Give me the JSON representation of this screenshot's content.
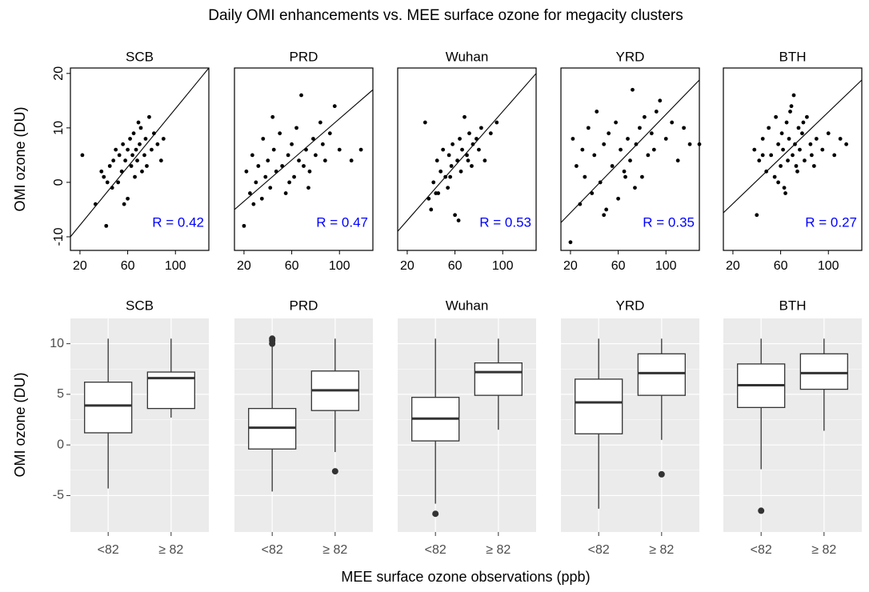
{
  "figure": {
    "title": "Daily OMI enhancements vs. MEE surface ozone for megacity clusters",
    "x_label": "MEE surface ozone observations (ppb)",
    "y_label": "OMI ozone (DU)"
  },
  "chart_data": [
    {
      "type": "scatter",
      "title": "SCB",
      "color": "#000000",
      "xlim": [
        12,
        128
      ],
      "ylim": [
        -12.5,
        21
      ],
      "xticks": [
        20,
        60,
        100
      ],
      "yticks": [
        -10,
        0,
        10,
        20
      ],
      "x": [
        22,
        33,
        38,
        40,
        42,
        45,
        47,
        48,
        50,
        52,
        53,
        55,
        56,
        58,
        60,
        60,
        62,
        63,
        64,
        65,
        66,
        67,
        68,
        70,
        71,
        72,
        74,
        75,
        76,
        78,
        80,
        82,
        85,
        88,
        90,
        43,
        57,
        69
      ],
      "y": [
        5,
        -4,
        2,
        1,
        -8,
        3,
        -1,
        4,
        6,
        0,
        5,
        2,
        7,
        4,
        -3,
        6,
        8,
        3,
        5,
        9,
        1,
        6,
        4,
        7,
        10,
        2,
        5,
        8,
        3,
        12,
        6,
        9,
        7,
        4,
        8,
        0,
        -4,
        11
      ],
      "fit_line": {
        "x": [
          12,
          128
        ],
        "y": [
          -10,
          21
        ]
      },
      "annotation": "R = 0.42",
      "annotation_color": "#0000ff"
    },
    {
      "type": "scatter",
      "title": "PRD",
      "color": "#000000",
      "xlim": [
        12,
        128
      ],
      "ylim": [
        -12.5,
        21
      ],
      "xticks": [
        20,
        60,
        100
      ],
      "x": [
        20,
        22,
        25,
        27,
        30,
        32,
        35,
        36,
        38,
        40,
        42,
        45,
        47,
        50,
        52,
        55,
        57,
        60,
        62,
        64,
        66,
        68,
        70,
        72,
        75,
        78,
        80,
        84,
        88,
        92,
        96,
        100,
        110,
        118,
        28,
        44,
        58,
        74,
        86
      ],
      "y": [
        -8,
        2,
        -2,
        5,
        0,
        3,
        -3,
        8,
        1,
        4,
        -1,
        6,
        2,
        9,
        3,
        -2,
        5,
        7,
        1,
        10,
        4,
        16,
        3,
        6,
        2,
        8,
        5,
        11,
        4,
        9,
        14,
        6,
        4,
        6,
        -4,
        12,
        0,
        -1,
        7
      ],
      "fit_line": {
        "x": [
          12,
          128
        ],
        "y": [
          -5,
          17
        ]
      },
      "annotation": "R = 0.47",
      "annotation_color": "#0000ff"
    },
    {
      "type": "scatter",
      "title": "Wuhan",
      "color": "#000000",
      "xlim": [
        12,
        128
      ],
      "ylim": [
        -12.5,
        21
      ],
      "xticks": [
        20,
        60,
        100
      ],
      "x": [
        35,
        38,
        40,
        42,
        45,
        46,
        48,
        50,
        52,
        54,
        55,
        57,
        58,
        60,
        62,
        64,
        65,
        66,
        68,
        70,
        72,
        74,
        75,
        78,
        80,
        82,
        85,
        90,
        95,
        44,
        56,
        63,
        71
      ],
      "y": [
        11,
        -3,
        -5,
        0,
        4,
        -2,
        2,
        6,
        1,
        -1,
        5,
        3,
        7,
        -6,
        4,
        8,
        2,
        6,
        12,
        5,
        9,
        3,
        7,
        8,
        6,
        10,
        4,
        9,
        11,
        -2,
        1,
        -7,
        4
      ],
      "fit_line": {
        "x": [
          12,
          128
        ],
        "y": [
          -9,
          20
        ]
      },
      "annotation": "R = 0.53",
      "annotation_color": "#0000ff"
    },
    {
      "type": "scatter",
      "title": "YRD",
      "color": "#000000",
      "xlim": [
        12,
        128
      ],
      "ylim": [
        -12.5,
        21
      ],
      "xticks": [
        20,
        60,
        100
      ],
      "x": [
        20,
        22,
        25,
        28,
        30,
        32,
        35,
        38,
        40,
        42,
        45,
        48,
        50,
        52,
        55,
        58,
        60,
        62,
        65,
        68,
        70,
        72,
        75,
        78,
        80,
        82,
        85,
        88,
        90,
        95,
        100,
        105,
        110,
        115,
        120,
        128,
        48,
        66,
        74,
        92
      ],
      "y": [
        -11,
        8,
        3,
        -4,
        6,
        1,
        10,
        -2,
        5,
        13,
        0,
        7,
        -5,
        9,
        3,
        11,
        -3,
        6,
        2,
        8,
        4,
        17,
        7,
        10,
        1,
        12,
        5,
        9,
        6,
        15,
        8,
        11,
        4,
        10,
        7,
        7,
        -6,
        1,
        -1,
        13
      ],
      "fit_line": {
        "x": [
          12,
          128
        ],
        "y": [
          -7.4,
          18.8
        ]
      },
      "annotation": "R = 0.35",
      "annotation_color": "#0000ff"
    },
    {
      "type": "scatter",
      "title": "BTH",
      "color": "#000000",
      "xlim": [
        12,
        128
      ],
      "ylim": [
        -12.5,
        21
      ],
      "xticks": [
        20,
        60,
        100
      ],
      "x": [
        38,
        40,
        42,
        45,
        48,
        50,
        52,
        55,
        56,
        58,
        60,
        61,
        62,
        64,
        65,
        66,
        67,
        68,
        70,
        71,
        72,
        74,
        75,
        76,
        78,
        80,
        82,
        85,
        88,
        90,
        95,
        100,
        105,
        110,
        115,
        45,
        58,
        63,
        69,
        73,
        79,
        86
      ],
      "y": [
        6,
        -6,
        4,
        8,
        2,
        10,
        5,
        1,
        12,
        7,
        3,
        9,
        6,
        -2,
        11,
        4,
        8,
        13,
        5,
        16,
        7,
        2,
        10,
        6,
        9,
        4,
        12,
        7,
        3,
        8,
        6,
        9,
        5,
        8,
        7,
        5,
        0,
        -1,
        14,
        3,
        11,
        5
      ],
      "fit_line": {
        "x": [
          12,
          128
        ],
        "y": [
          -5.6,
          18.8
        ]
      },
      "annotation": "R = 0.27",
      "annotation_color": "#0000ff"
    },
    {
      "type": "box",
      "title": "SCB",
      "categories": [
        "<82",
        "≥ 82"
      ],
      "ylim": [
        -8.6,
        12.5
      ],
      "yticks": [
        -5,
        0,
        5,
        10
      ],
      "grid": true,
      "background": "#ebebeb",
      "color": "#333333",
      "boxes": [
        {
          "low": -4.3,
          "q1": 1.2,
          "median": 3.9,
          "q3": 6.2,
          "high": 10.5,
          "outliers": []
        },
        {
          "low": 2.7,
          "q1": 3.6,
          "median": 6.6,
          "q3": 7.2,
          "high": 10.5,
          "outliers": []
        }
      ]
    },
    {
      "type": "box",
      "title": "PRD",
      "categories": [
        "<82",
        "≥ 82"
      ],
      "ylim": [
        -8.6,
        12.5
      ],
      "grid": true,
      "background": "#ebebeb",
      "color": "#333333",
      "boxes": [
        {
          "low": -4.6,
          "q1": -0.4,
          "median": 1.7,
          "q3": 3.6,
          "high": 9.7,
          "outliers": [
            10.0,
            10.3,
            10.5
          ]
        },
        {
          "low": -0.7,
          "q1": 3.4,
          "median": 5.4,
          "q3": 7.3,
          "high": 10.5,
          "outliers": [
            -2.6
          ]
        }
      ]
    },
    {
      "type": "box",
      "title": "Wuhan",
      "categories": [
        "<82",
        "≥ 82"
      ],
      "ylim": [
        -8.6,
        12.5
      ],
      "grid": true,
      "background": "#ebebeb",
      "color": "#333333",
      "boxes": [
        {
          "low": -5.8,
          "q1": 0.4,
          "median": 2.6,
          "q3": 4.7,
          "high": 10.5,
          "outliers": [
            -6.8
          ]
        },
        {
          "low": 1.5,
          "q1": 4.9,
          "median": 7.2,
          "q3": 8.1,
          "high": 10.5,
          "outliers": []
        }
      ]
    },
    {
      "type": "box",
      "title": "YRD",
      "categories": [
        "<82",
        "≥ 82"
      ],
      "ylim": [
        -8.6,
        12.5
      ],
      "grid": true,
      "background": "#ebebeb",
      "color": "#333333",
      "boxes": [
        {
          "low": -6.3,
          "q1": 1.1,
          "median": 4.2,
          "q3": 6.5,
          "high": 10.5,
          "outliers": []
        },
        {
          "low": 0.5,
          "q1": 4.9,
          "median": 7.1,
          "q3": 9.0,
          "high": 10.5,
          "outliers": [
            -2.9
          ]
        }
      ]
    },
    {
      "type": "box",
      "title": "BTH",
      "categories": [
        "<82",
        "≥ 82"
      ],
      "ylim": [
        -8.6,
        12.5
      ],
      "grid": true,
      "background": "#ebebeb",
      "color": "#333333",
      "boxes": [
        {
          "low": -2.4,
          "q1": 3.7,
          "median": 5.9,
          "q3": 8.0,
          "high": 10.5,
          "outliers": [
            -6.5
          ]
        },
        {
          "low": 1.4,
          "q1": 5.5,
          "median": 7.1,
          "q3": 9.0,
          "high": 10.5,
          "outliers": []
        }
      ]
    }
  ]
}
